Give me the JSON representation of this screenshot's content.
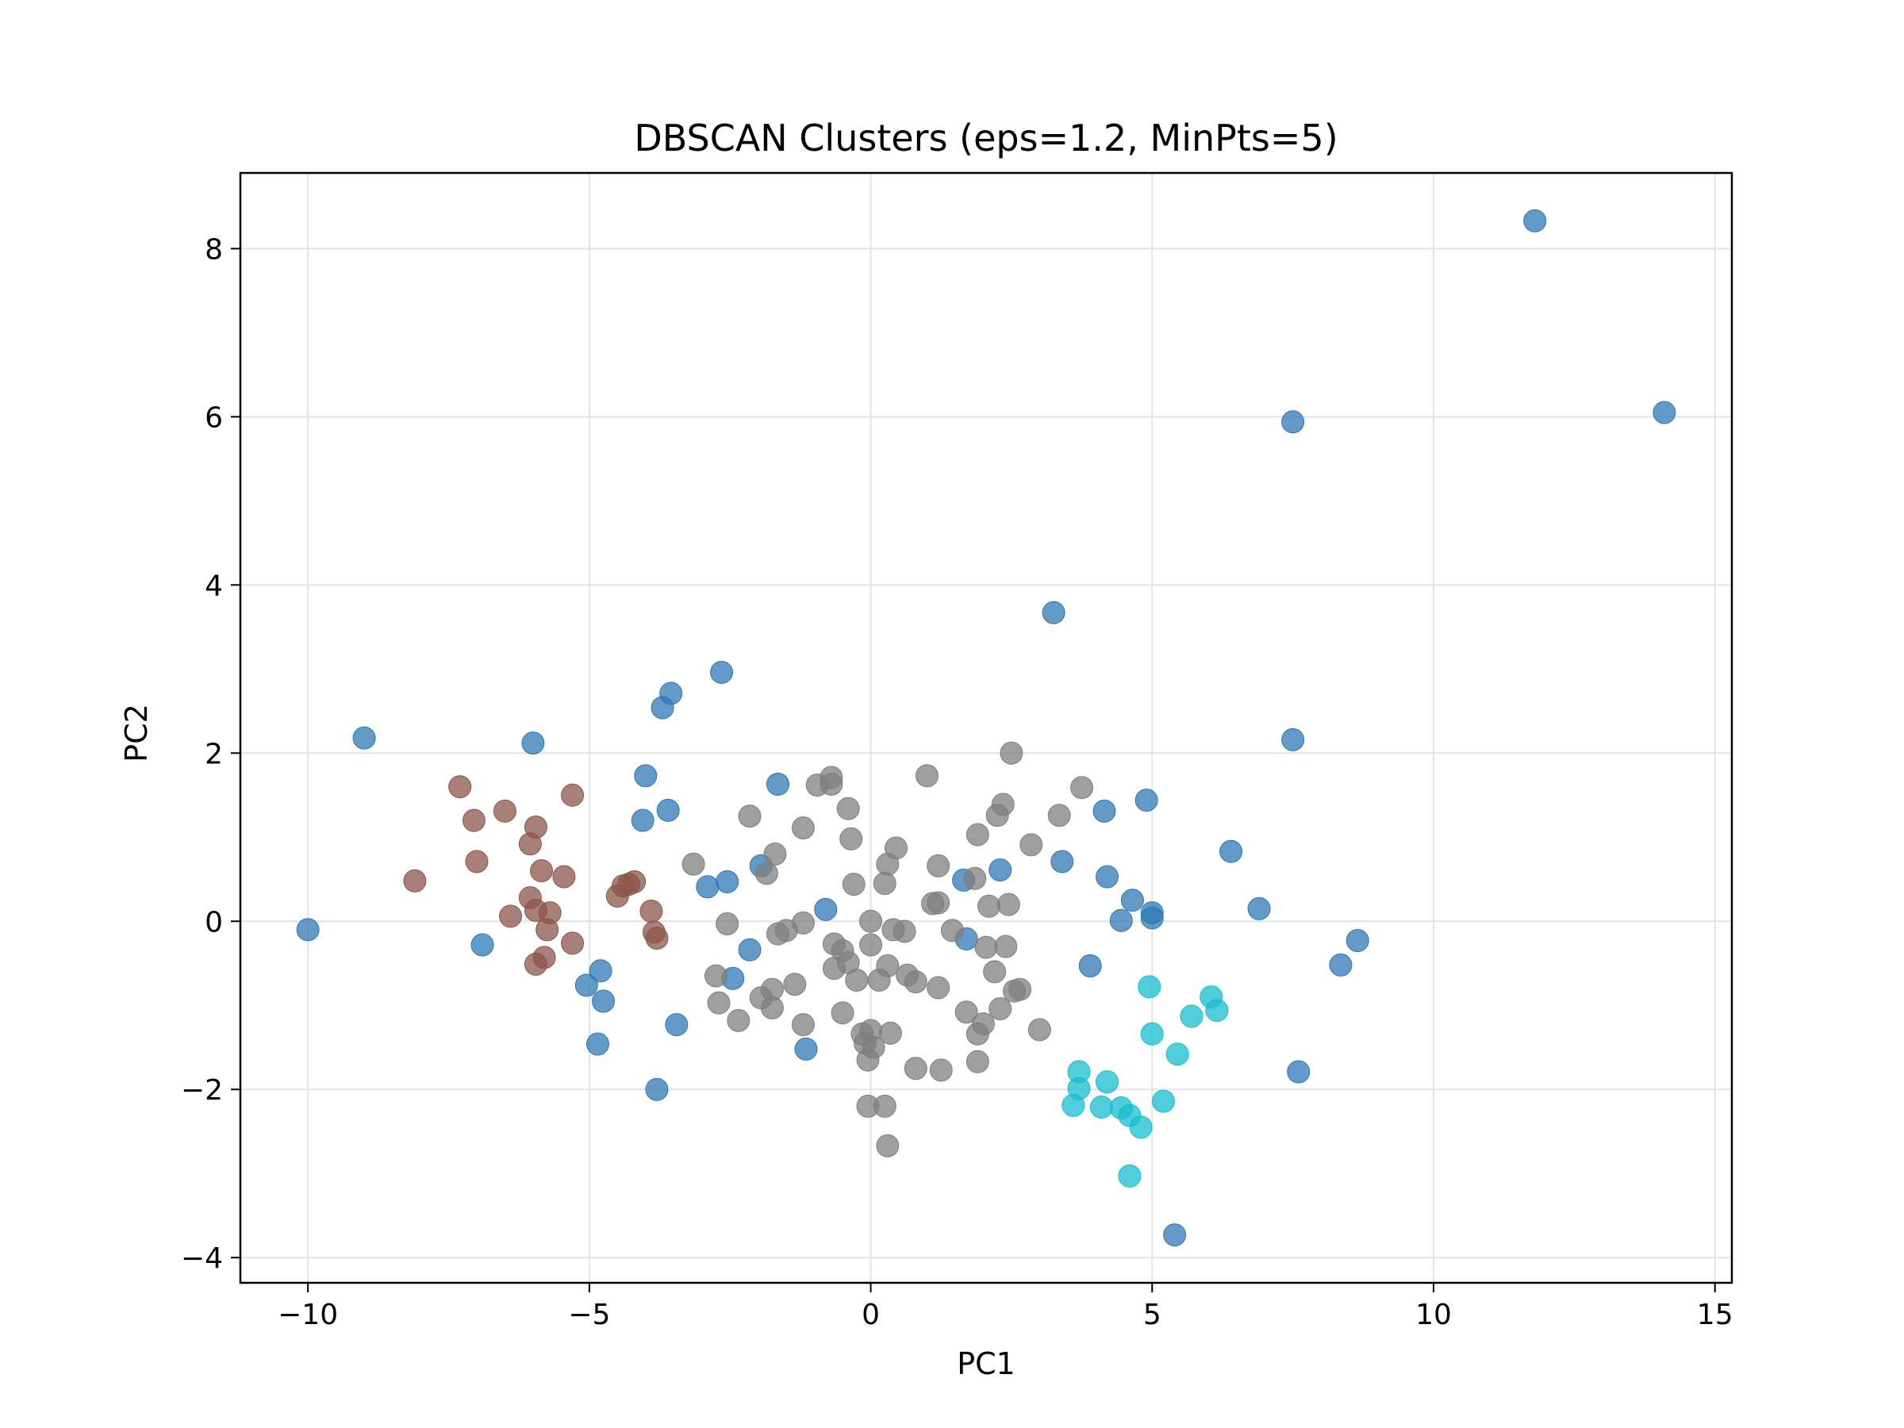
{
  "chart_data": {
    "type": "scatter",
    "title": "DBSCAN Clusters (eps=1.2, MinPts=5)",
    "xlabel": "PC1",
    "ylabel": "PC2",
    "xlim": [
      -11.2,
      15.3
    ],
    "ylim": [
      -4.3,
      8.9
    ],
    "xticks": [
      -10,
      -5,
      0,
      5,
      10,
      15
    ],
    "yticks": [
      -4,
      -2,
      0,
      2,
      4,
      6,
      8
    ],
    "xtick_labels": [
      "−10",
      "−5",
      "0",
      "5",
      "10",
      "15"
    ],
    "ytick_labels": [
      "−4",
      "−2",
      "0",
      "2",
      "4",
      "6",
      "8"
    ],
    "grid": true,
    "legend": "none",
    "series": [
      {
        "color": "#2f78b4",
        "points": [
          [
            11.8,
            8.33
          ],
          [
            14.1,
            6.05
          ],
          [
            7.5,
            5.94
          ],
          [
            3.25,
            3.67
          ],
          [
            7.5,
            2.16
          ],
          [
            -2.65,
            2.96
          ],
          [
            -3.55,
            2.71
          ],
          [
            -3.7,
            2.54
          ],
          [
            -9.0,
            2.18
          ],
          [
            -6.0,
            2.12
          ],
          [
            -4.0,
            1.73
          ],
          [
            -1.65,
            1.63
          ],
          [
            -3.6,
            1.32
          ],
          [
            -4.05,
            1.2
          ],
          [
            4.9,
            1.44
          ],
          [
            4.15,
            1.31
          ],
          [
            6.4,
            0.83
          ],
          [
            3.4,
            0.71
          ],
          [
            -1.95,
            0.66
          ],
          [
            2.3,
            0.61
          ],
          [
            4.2,
            0.53
          ],
          [
            -2.55,
            0.47
          ],
          [
            -2.9,
            0.41
          ],
          [
            1.65,
            0.49
          ],
          [
            4.65,
            0.25
          ],
          [
            -0.8,
            0.14
          ],
          [
            5.0,
            0.1
          ],
          [
            6.9,
            0.15
          ],
          [
            5.0,
            0.04
          ],
          [
            4.45,
            0.01
          ],
          [
            -10.0,
            -0.1
          ],
          [
            -6.9,
            -0.28
          ],
          [
            1.7,
            -0.21
          ],
          [
            -2.15,
            -0.34
          ],
          [
            8.65,
            -0.23
          ],
          [
            8.35,
            -0.52
          ],
          [
            3.9,
            -0.53
          ],
          [
            -4.8,
            -0.59
          ],
          [
            -2.45,
            -0.68
          ],
          [
            -5.05,
            -0.76
          ],
          [
            -4.75,
            -0.95
          ],
          [
            -3.45,
            -1.23
          ],
          [
            -1.15,
            -1.52
          ],
          [
            -4.85,
            -1.46
          ],
          [
            7.6,
            -1.79
          ],
          [
            -3.8,
            -2.0
          ],
          [
            5.4,
            -3.73
          ]
        ]
      },
      {
        "color": "#8c564b",
        "points": [
          [
            -7.3,
            1.6
          ],
          [
            -5.3,
            1.5
          ],
          [
            -6.5,
            1.31
          ],
          [
            -7.05,
            1.2
          ],
          [
            -5.95,
            1.12
          ],
          [
            -6.05,
            0.92
          ],
          [
            -7.0,
            0.71
          ],
          [
            -5.85,
            0.6
          ],
          [
            -5.45,
            0.53
          ],
          [
            -8.1,
            0.48
          ],
          [
            -4.4,
            0.42
          ],
          [
            -4.2,
            0.47
          ],
          [
            -4.3,
            0.44
          ],
          [
            -4.5,
            0.3
          ],
          [
            -6.05,
            0.28
          ],
          [
            -3.9,
            0.12
          ],
          [
            -6.4,
            0.06
          ],
          [
            -5.95,
            0.13
          ],
          [
            -5.7,
            0.1
          ],
          [
            -5.75,
            -0.1
          ],
          [
            -3.85,
            -0.13
          ],
          [
            -3.8,
            -0.2
          ],
          [
            -5.3,
            -0.26
          ],
          [
            -5.8,
            -0.43
          ],
          [
            -5.95,
            -0.51
          ]
        ]
      },
      {
        "color": "#17becf",
        "points": [
          [
            4.95,
            -0.78
          ],
          [
            6.05,
            -0.9
          ],
          [
            6.15,
            -1.06
          ],
          [
            5.7,
            -1.13
          ],
          [
            5.0,
            -1.34
          ],
          [
            5.45,
            -1.58
          ],
          [
            3.7,
            -1.79
          ],
          [
            4.2,
            -1.91
          ],
          [
            3.7,
            -1.99
          ],
          [
            5.2,
            -2.14
          ],
          [
            3.6,
            -2.19
          ],
          [
            4.1,
            -2.21
          ],
          [
            4.45,
            -2.22
          ],
          [
            4.6,
            -2.31
          ],
          [
            4.8,
            -2.45
          ],
          [
            4.6,
            -3.03
          ]
        ]
      },
      {
        "color": "#7f7f7f",
        "points": [
          [
            2.5,
            2.0
          ],
          [
            1.0,
            1.73
          ],
          [
            -0.7,
            1.71
          ],
          [
            -0.95,
            1.62
          ],
          [
            -0.7,
            1.63
          ],
          [
            3.75,
            1.59
          ],
          [
            2.35,
            1.39
          ],
          [
            -0.4,
            1.34
          ],
          [
            -2.15,
            1.25
          ],
          [
            2.25,
            1.26
          ],
          [
            3.35,
            1.26
          ],
          [
            -1.2,
            1.11
          ],
          [
            1.9,
            1.03
          ],
          [
            -0.35,
            0.98
          ],
          [
            2.85,
            0.91
          ],
          [
            0.45,
            0.87
          ],
          [
            -1.7,
            0.8
          ],
          [
            -3.15,
            0.68
          ],
          [
            1.2,
            0.66
          ],
          [
            0.3,
            0.68
          ],
          [
            -1.85,
            0.57
          ],
          [
            1.85,
            0.51
          ],
          [
            -0.3,
            0.44
          ],
          [
            0.25,
            0.45
          ],
          [
            1.1,
            0.21
          ],
          [
            1.2,
            0.22
          ],
          [
            2.1,
            0.18
          ],
          [
            2.45,
            0.2
          ],
          [
            -1.2,
            -0.02
          ],
          [
            0.0,
            0.0
          ],
          [
            -2.55,
            -0.03
          ],
          [
            -1.5,
            -0.11
          ],
          [
            0.4,
            -0.1
          ],
          [
            0.6,
            -0.12
          ],
          [
            1.45,
            -0.11
          ],
          [
            -1.65,
            -0.15
          ],
          [
            -0.65,
            -0.27
          ],
          [
            0.0,
            -0.28
          ],
          [
            -0.5,
            -0.35
          ],
          [
            2.05,
            -0.31
          ],
          [
            2.4,
            -0.3
          ],
          [
            -0.4,
            -0.49
          ],
          [
            0.3,
            -0.53
          ],
          [
            -0.65,
            -0.56
          ],
          [
            2.2,
            -0.6
          ],
          [
            -2.75,
            -0.65
          ],
          [
            0.65,
            -0.64
          ],
          [
            0.8,
            -0.72
          ],
          [
            -0.25,
            -0.7
          ],
          [
            0.15,
            -0.7
          ],
          [
            1.2,
            -0.79
          ],
          [
            -1.75,
            -0.81
          ],
          [
            -1.35,
            -0.75
          ],
          [
            -1.95,
            -0.91
          ],
          [
            2.55,
            -0.83
          ],
          [
            2.65,
            -0.81
          ],
          [
            -2.7,
            -0.97
          ],
          [
            -1.75,
            -1.03
          ],
          [
            1.7,
            -1.08
          ],
          [
            2.3,
            -1.04
          ],
          [
            -0.5,
            -1.09
          ],
          [
            2.0,
            -1.22
          ],
          [
            -2.35,
            -1.18
          ],
          [
            -1.2,
            -1.23
          ],
          [
            3.0,
            -1.29
          ],
          [
            1.9,
            -1.34
          ],
          [
            0.35,
            -1.33
          ],
          [
            -0.15,
            -1.34
          ],
          [
            0.0,
            -1.3
          ],
          [
            -0.1,
            -1.45
          ],
          [
            0.05,
            -1.5
          ],
          [
            -0.05,
            -1.65
          ],
          [
            1.9,
            -1.67
          ],
          [
            0.8,
            -1.75
          ],
          [
            1.25,
            -1.77
          ],
          [
            -0.05,
            -2.2
          ],
          [
            0.25,
            -2.2
          ],
          [
            0.3,
            -2.67
          ]
        ]
      }
    ]
  }
}
